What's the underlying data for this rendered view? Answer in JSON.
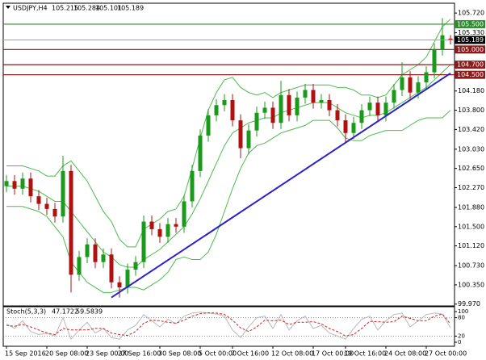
{
  "chart_data": {
    "type": "candlestick",
    "symbol": "USDJPY,H4",
    "stoch_title": "Stoch(5,3,3)",
    "categories": [
      "15 Sep 2016",
      null,
      null,
      null,
      null,
      "20 Sep 08:00",
      null,
      null,
      null,
      null,
      "23 Sep 00:00",
      null,
      null,
      null,
      "27 Sep 16:00",
      null,
      null,
      null,
      null,
      "30 Sep 08:00",
      null,
      null,
      null,
      null,
      "5 Oct 00:00",
      null,
      null,
      null,
      "7 Oct 16:00",
      null,
      null,
      null,
      null,
      "12 Oct 08:00",
      null,
      null,
      null,
      null,
      "17 Oct 00:00",
      null,
      null,
      null,
      "19 Oct 16:00",
      null,
      null,
      null,
      null,
      "24 Oct 08:00",
      null,
      null,
      null,
      null,
      "27 Oct 00:00",
      null,
      null,
      null
    ],
    "candles": {
      "open": [
        102.3,
        102.4,
        102.25,
        102.45,
        102.1,
        101.95,
        101.85,
        101.7,
        102.6,
        100.55,
        100.9,
        101.15,
        100.8,
        100.95,
        100.4,
        100.3,
        100.65,
        100.8,
        101.6,
        101.45,
        101.3,
        101.55,
        101.5,
        102.0,
        102.6,
        103.3,
        103.7,
        103.9,
        104.0,
        103.6,
        103.05,
        103.4,
        103.75,
        103.85,
        103.55,
        104.1,
        103.7,
        104.05,
        104.2,
        103.95,
        104.0,
        103.8,
        103.6,
        103.35,
        103.55,
        103.8,
        103.95,
        103.7,
        103.95,
        104.2,
        104.45,
        104.15,
        104.35,
        104.55,
        105.0,
        105.215
      ],
      "high": [
        102.52,
        102.52,
        102.57,
        102.57,
        102.22,
        102.07,
        101.97,
        102.9,
        102.72,
        101.02,
        101.27,
        101.27,
        101.07,
        101.07,
        100.52,
        100.77,
        100.92,
        101.72,
        101.72,
        101.57,
        101.67,
        101.67,
        102.12,
        102.72,
        103.42,
        103.82,
        104.02,
        104.12,
        104.12,
        103.72,
        103.52,
        103.87,
        103.97,
        103.97,
        104.38,
        104.22,
        104.17,
        104.32,
        104.32,
        104.12,
        104.12,
        103.92,
        103.72,
        103.67,
        103.92,
        104.07,
        104.07,
        104.07,
        104.32,
        104.75,
        104.57,
        104.47,
        104.67,
        105.12,
        105.62,
        105.284
      ],
      "low": [
        102.18,
        102.13,
        102.13,
        101.98,
        101.83,
        101.73,
        101.58,
        101.58,
        100.2,
        100.43,
        100.78,
        100.68,
        100.68,
        100.28,
        100.1,
        100.18,
        100.53,
        100.68,
        101.33,
        101.18,
        101.18,
        101.38,
        101.38,
        101.88,
        102.48,
        103.18,
        103.58,
        103.78,
        103.48,
        102.85,
        102.93,
        103.28,
        103.63,
        103.43,
        103.43,
        103.58,
        103.58,
        103.93,
        103.83,
        103.83,
        103.68,
        103.48,
        103.15,
        103.23,
        103.43,
        103.68,
        103.58,
        103.58,
        103.83,
        104.08,
        104.03,
        104.03,
        104.23,
        104.43,
        104.88,
        105.101
      ],
      "close": [
        102.4,
        102.25,
        102.45,
        102.1,
        101.95,
        101.85,
        101.7,
        102.6,
        100.55,
        100.9,
        101.15,
        100.8,
        100.95,
        100.4,
        100.3,
        100.65,
        100.8,
        101.6,
        101.45,
        101.3,
        101.55,
        101.5,
        102.0,
        102.6,
        103.3,
        103.7,
        103.9,
        104.0,
        103.6,
        103.05,
        103.4,
        103.75,
        103.85,
        103.55,
        104.1,
        103.7,
        104.05,
        104.2,
        103.95,
        104.0,
        103.8,
        103.6,
        103.35,
        103.55,
        103.8,
        103.95,
        103.7,
        103.95,
        104.2,
        104.45,
        104.15,
        104.35,
        104.55,
        105.0,
        105.28,
        105.189
      ],
      "up_color": "#1a9a1a",
      "down_color": "#b01010"
    },
    "bands": {
      "color": "#4cbb4c",
      "upper": [
        102.7,
        102.7,
        102.7,
        102.65,
        102.6,
        102.5,
        102.5,
        102.7,
        102.8,
        102.6,
        102.4,
        102.1,
        101.8,
        101.6,
        101.25,
        101.1,
        101.1,
        101.45,
        101.55,
        101.65,
        101.8,
        101.85,
        102.1,
        102.65,
        103.25,
        103.8,
        104.15,
        104.4,
        104.45,
        104.25,
        104.15,
        104.1,
        104.15,
        104.05,
        104.15,
        104.2,
        104.25,
        104.3,
        104.3,
        104.3,
        104.3,
        104.25,
        104.25,
        104.2,
        104.1,
        104.1,
        104.05,
        104.1,
        104.3,
        104.5,
        104.6,
        104.7,
        104.85,
        105.15,
        105.45,
        105.6
      ],
      "middle": [
        102.3,
        102.3,
        102.3,
        102.25,
        102.2,
        102.1,
        102.0,
        102.0,
        101.8,
        101.6,
        101.4,
        101.2,
        101.0,
        100.9,
        100.75,
        100.7,
        100.7,
        100.85,
        100.95,
        101.05,
        101.2,
        101.35,
        101.5,
        101.75,
        102.05,
        102.4,
        102.75,
        103.1,
        103.35,
        103.45,
        103.55,
        103.6,
        103.65,
        103.65,
        103.75,
        103.8,
        103.85,
        103.9,
        103.95,
        103.95,
        103.95,
        103.85,
        103.75,
        103.7,
        103.65,
        103.7,
        103.7,
        103.75,
        103.85,
        103.95,
        104.05,
        104.15,
        104.25,
        104.4,
        104.55,
        104.7
      ],
      "lower": [
        101.9,
        101.9,
        101.9,
        101.85,
        101.8,
        101.7,
        101.5,
        101.3,
        100.8,
        100.6,
        100.4,
        100.3,
        100.2,
        100.2,
        100.25,
        100.3,
        100.3,
        100.25,
        100.35,
        100.45,
        100.6,
        100.85,
        100.9,
        100.85,
        100.85,
        101.0,
        101.35,
        101.8,
        102.25,
        102.65,
        102.95,
        103.1,
        103.15,
        103.25,
        103.35,
        103.4,
        103.45,
        103.5,
        103.6,
        103.6,
        103.6,
        103.45,
        103.25,
        103.2,
        103.2,
        103.3,
        103.35,
        103.4,
        103.4,
        103.4,
        103.5,
        103.6,
        103.65,
        103.65,
        103.65,
        103.8
      ]
    },
    "trendline": {
      "x": [
        13,
        55
      ],
      "values": [
        100.1,
        104.53
      ],
      "color": "#2a22c8"
    },
    "levels": [
      {
        "value": 105.5,
        "label": "105.500",
        "color": "#2e8b2e"
      },
      {
        "value": 105.0,
        "label": "105.000",
        "color": "#8b1a1a"
      },
      {
        "value": 104.7,
        "label": "104.700",
        "color": "#8b1a1a"
      },
      {
        "value": 104.5,
        "label": "104.500",
        "color": "#8b1a1a"
      }
    ],
    "current_color": "#9aa0b0",
    "ylim": [
      99.95,
      105.85
    ],
    "yticks": [
      {
        "value": 105.72,
        "label": "105.720"
      },
      {
        "value": 105.33,
        "label": "105.330"
      },
      {
        "value": 104.18,
        "label": "104.180"
      },
      {
        "value": 103.8,
        "label": "103.800"
      },
      {
        "value": 103.42,
        "label": "103.420"
      },
      {
        "value": 103.03,
        "label": "103.030"
      },
      {
        "value": 102.65,
        "label": "102.650"
      },
      {
        "value": 102.27,
        "label": "102.270"
      },
      {
        "value": 101.88,
        "label": "101.880"
      },
      {
        "value": 101.5,
        "label": "101.500"
      },
      {
        "value": 101.12,
        "label": "101.120"
      },
      {
        "value": 100.73,
        "label": "100.730"
      },
      {
        "value": 100.35,
        "label": "100.350"
      },
      {
        "value": 99.97,
        "label": "99.970"
      }
    ],
    "stoch": {
      "main": {
        "color": "#b8b8b8",
        "values": [
          60,
          45,
          70,
          35,
          25,
          30,
          20,
          80,
          10,
          40,
          65,
          30,
          45,
          15,
          10,
          40,
          55,
          90,
          70,
          50,
          75,
          60,
          85,
          95,
          98,
          95,
          92,
          85,
          40,
          15,
          50,
          80,
          85,
          45,
          90,
          40,
          70,
          85,
          45,
          55,
          30,
          20,
          10,
          45,
          75,
          85,
          40,
          70,
          90,
          95,
          50,
          70,
          90,
          95,
          92,
          47.1722
        ]
      },
      "signal": {
        "color": "#d02020",
        "values": [
          55,
          52,
          58,
          50,
          40,
          30,
          25,
          45,
          40,
          40,
          40,
          45,
          45,
          30,
          25,
          22,
          35,
          62,
          72,
          70,
          65,
          62,
          72,
          85,
          93,
          96,
          95,
          91,
          72,
          47,
          35,
          50,
          72,
          70,
          72,
          58,
          65,
          65,
          67,
          60,
          45,
          35,
          20,
          25,
          45,
          68,
          67,
          65,
          67,
          85,
          78,
          70,
          70,
          85,
          92,
          59.5839
        ]
      },
      "ylim": [
        0,
        100
      ],
      "yticks": [
        100,
        80,
        20,
        0
      ],
      "levels": [
        80,
        20
      ]
    }
  }
}
